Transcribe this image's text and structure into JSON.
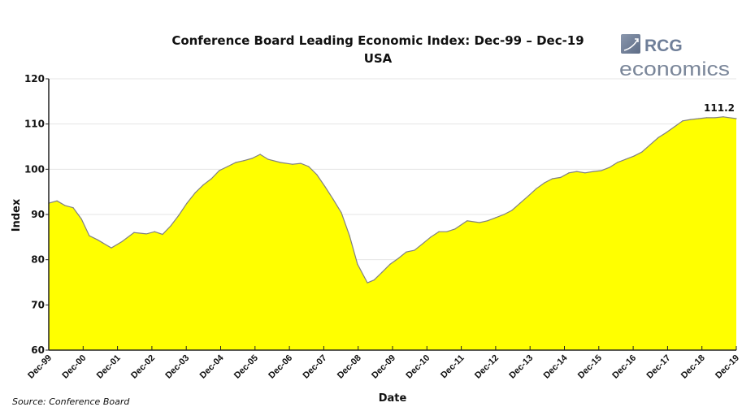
{
  "chart_data": {
    "type": "area",
    "title": "Conference Board Leading Economic Index: Dec-99 – Dec-19",
    "subtitle": "USA",
    "xlabel": "Date",
    "ylabel": "Index",
    "ylim": [
      60,
      120
    ],
    "yticks": [
      60,
      70,
      80,
      90,
      100,
      110,
      120
    ],
    "xlim": [
      1999.92,
      2019.92
    ],
    "xtick_labels": [
      "Dec-99",
      "Dec-00",
      "Dec-01",
      "Dec-02",
      "Dec-03",
      "Dec-04",
      "Dec-05",
      "Dec-06",
      "Dec-07",
      "Dec-08",
      "Dec-09",
      "Dec-10",
      "Dec-11",
      "Dec-12",
      "Dec-13",
      "Dec-14",
      "Dec-15",
      "Dec-16",
      "Dec-17",
      "Dec-18",
      "Dec-19"
    ],
    "grid": true,
    "fill_color": "#ffff00",
    "line_color": "#808080",
    "annotation": "111.2",
    "source": "Source: Conference Board",
    "x": [
      1999.92,
      2000.16,
      2000.39,
      2000.63,
      2000.87,
      2001.1,
      2001.34,
      2001.74,
      2002.05,
      2002.4,
      2002.76,
      2003.0,
      2003.23,
      2003.47,
      2003.7,
      2003.94,
      2004.18,
      2004.41,
      2004.65,
      2004.88,
      2005.12,
      2005.36,
      2005.59,
      2005.83,
      2006.07,
      2006.3,
      2006.66,
      2007.01,
      2007.25,
      2007.48,
      2007.72,
      2007.96,
      2008.19,
      2008.43,
      2008.67,
      2008.9,
      2009.19,
      2009.38,
      2009.61,
      2009.85,
      2010.09,
      2010.32,
      2010.56,
      2010.79,
      2011.03,
      2011.27,
      2011.5,
      2011.74,
      2012.09,
      2012.45,
      2012.68,
      2012.92,
      2013.16,
      2013.39,
      2013.63,
      2013.87,
      2014.1,
      2014.34,
      2014.57,
      2014.81,
      2015.05,
      2015.28,
      2015.52,
      2015.76,
      2015.99,
      2016.23,
      2016.46,
      2016.7,
      2016.94,
      2017.17,
      2017.41,
      2017.65,
      2017.88,
      2018.12,
      2018.36,
      2018.59,
      2018.83,
      2019.06,
      2019.3,
      2019.54,
      2019.92
    ],
    "values": [
      92.5,
      93,
      92,
      91.5,
      89,
      85.3,
      84.4,
      82.6,
      84,
      86,
      85.7,
      86.2,
      85.6,
      87.5,
      89.8,
      92.5,
      94.8,
      96.5,
      97.9,
      99.7,
      100.6,
      101.5,
      101.9,
      102.4,
      103.3,
      102.2,
      101.5,
      101.1,
      101.3,
      100.6,
      98.8,
      96.1,
      93.4,
      90.4,
      85.3,
      79,
      74.9,
      75.5,
      77.2,
      79,
      80.3,
      81.7,
      82.1,
      83.5,
      85,
      86.2,
      86.2,
      86.8,
      88.6,
      88.2,
      88.6,
      89.3,
      90,
      90.9,
      92.5,
      94.1,
      95.7,
      97,
      97.9,
      98.2,
      99.2,
      99.5,
      99.2,
      99.5,
      99.7,
      100.4,
      101.5,
      102.2,
      102.9,
      103.8,
      105.4,
      107,
      108.1,
      109.4,
      110.7,
      111,
      111.2,
      111.4,
      111.4,
      111.6,
      111.2
    ]
  },
  "logo": {
    "top": "RCG",
    "bottom": "economics"
  }
}
